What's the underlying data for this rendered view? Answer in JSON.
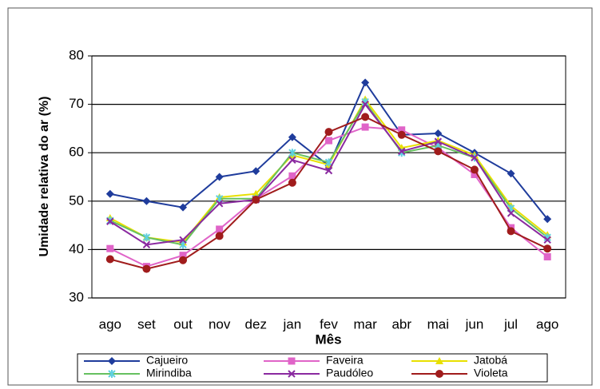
{
  "chart_data": {
    "type": "line",
    "y_label": "Umidade relativa do ar (%)",
    "x_label": "Mês",
    "categories": [
      "ago",
      "set",
      "out",
      "nov",
      "dez",
      "jan",
      "fev",
      "mar",
      "abr",
      "mai",
      "jun",
      "jul",
      "ago"
    ],
    "ylim": [
      30,
      80
    ],
    "yticks": [
      30,
      40,
      50,
      60,
      70,
      80
    ],
    "grid": true,
    "legend": "bottom",
    "series": [
      {
        "name": "Cajueiro",
        "color": "#1f3c9c",
        "marker": "diamond",
        "values": [
          51.5,
          50,
          48.7,
          55,
          56.2,
          63.2,
          57.3,
          74.5,
          63.7,
          64,
          60,
          55.7,
          46.3
        ]
      },
      {
        "name": "Faveira",
        "color": "#e064c8",
        "marker": "square",
        "values": [
          40.2,
          36.5,
          38.8,
          44.2,
          50.5,
          55.2,
          62.5,
          65.3,
          64.7,
          61,
          55.5,
          44.5,
          38.5
        ]
      },
      {
        "name": "Jatobá",
        "color": "#e8e000",
        "marker": "triangle",
        "values": [
          46.5,
          42.5,
          41.5,
          50.8,
          51.5,
          59.5,
          57.5,
          71,
          61,
          62.5,
          59.5,
          49,
          43
        ]
      },
      {
        "name": "Mirindiba",
        "color": "#66c060",
        "marker": "star",
        "values": [
          46,
          42.5,
          41,
          50.5,
          50.5,
          60,
          58,
          70.5,
          60,
          61.5,
          59,
          48.5,
          42.5
        ]
      },
      {
        "name": "Paudóleo",
        "color": "#8a2aa0",
        "marker": "x",
        "values": [
          45.8,
          41,
          42,
          49.5,
          50.3,
          58.5,
          56.3,
          70,
          60.3,
          62.3,
          59,
          47.5,
          42
        ]
      },
      {
        "name": "Violeta",
        "color": "#a01c1c",
        "marker": "circle",
        "values": [
          38,
          36,
          37.8,
          42.8,
          50.3,
          53.8,
          64.3,
          67.4,
          63.7,
          60.3,
          56.5,
          43.8,
          40.2
        ]
      }
    ]
  }
}
